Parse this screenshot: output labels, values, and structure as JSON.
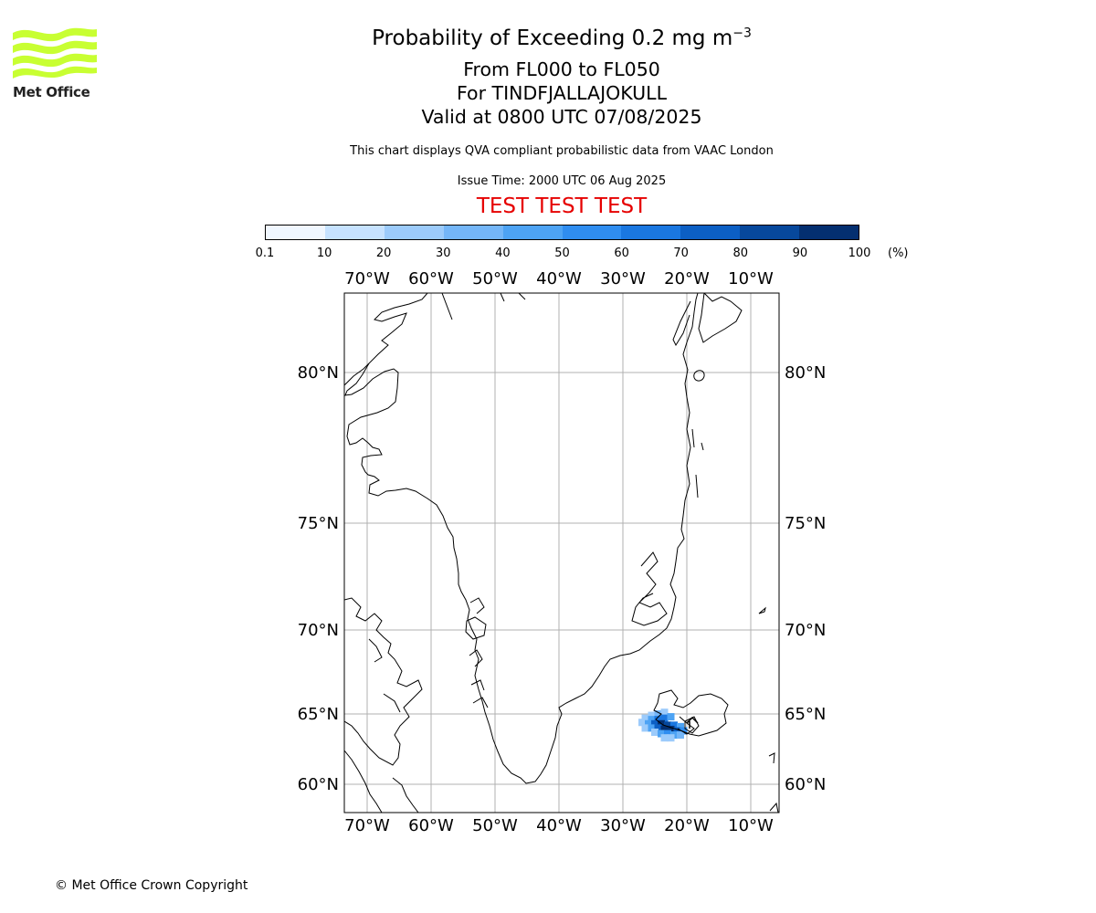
{
  "logo": {
    "text": "Met Office",
    "color": "#c8ff32"
  },
  "title": {
    "main_prefix": "Probability of Exceeding 0.2 mg m",
    "main_exponent": "−3",
    "levels": "From FL000 to FL050",
    "volcano": "For TINDFJALLAJOKULL",
    "valid": "Valid at 0800 UTC 07/08/2025"
  },
  "info": {
    "description": "This chart displays QVA compliant probabilistic data from VAAC London",
    "issue_time": "Issue Time: 2000 UTC 06 Aug 2025",
    "test_banner": "TEST TEST TEST"
  },
  "colorbar": {
    "unit": "(%)",
    "ticks": [
      "0.1",
      "10",
      "20",
      "30",
      "40",
      "50",
      "60",
      "70",
      "80",
      "90",
      "100"
    ],
    "colors": [
      "#f0f7ff",
      "#c6e2ff",
      "#9ccbfb",
      "#74b6f8",
      "#4da3f4",
      "#2f8df0",
      "#1a77e0",
      "#0c5fc4",
      "#07489c",
      "#042f70"
    ]
  },
  "map": {
    "lon_labels": [
      "70°W",
      "60°W",
      "50°W",
      "40°W",
      "30°W",
      "20°W",
      "10°W"
    ],
    "lat_labels": [
      "80°N",
      "75°N",
      "70°N",
      "65°N",
      "60°N"
    ]
  },
  "chart_data": {
    "type": "heatmap",
    "title": "Probability of Exceeding 0.2 mg m−3",
    "value_unit": "%",
    "colorbar_bounds": [
      0.1,
      10,
      20,
      30,
      40,
      50,
      60,
      70,
      80,
      90,
      100
    ],
    "lon_range": [
      -73.5,
      -6.0
    ],
    "lat_range": [
      58.5,
      82.5
    ],
    "lon_ticks": [
      -70,
      -60,
      -50,
      -40,
      -30,
      -20,
      -10
    ],
    "lat_ticks": [
      80,
      75,
      70,
      65,
      60
    ],
    "grid": true,
    "plume_cells": [
      {
        "lon": -25.5,
        "lat": 64.9,
        "pct": 20
      },
      {
        "lon": -24.5,
        "lat": 65.0,
        "pct": 30
      },
      {
        "lon": -23.5,
        "lat": 65.1,
        "pct": 20
      },
      {
        "lon": -26.5,
        "lat": 64.7,
        "pct": 20
      },
      {
        "lon": -25.5,
        "lat": 64.6,
        "pct": 40
      },
      {
        "lon": -24.5,
        "lat": 64.6,
        "pct": 60
      },
      {
        "lon": -23.5,
        "lat": 64.7,
        "pct": 60
      },
      {
        "lon": -22.5,
        "lat": 64.8,
        "pct": 40
      },
      {
        "lon": -27.0,
        "lat": 64.4,
        "pct": 20
      },
      {
        "lon": -26.0,
        "lat": 64.3,
        "pct": 40
      },
      {
        "lon": -25.0,
        "lat": 64.3,
        "pct": 70
      },
      {
        "lon": -24.0,
        "lat": 64.3,
        "pct": 90
      },
      {
        "lon": -23.0,
        "lat": 64.2,
        "pct": 80
      },
      {
        "lon": -22.0,
        "lat": 64.2,
        "pct": 60
      },
      {
        "lon": -21.0,
        "lat": 64.1,
        "pct": 40
      },
      {
        "lon": -26.5,
        "lat": 64.0,
        "pct": 20
      },
      {
        "lon": -25.5,
        "lat": 64.0,
        "pct": 40
      },
      {
        "lon": -24.5,
        "lat": 64.0,
        "pct": 70
      },
      {
        "lon": -23.5,
        "lat": 63.9,
        "pct": 90
      },
      {
        "lon": -22.5,
        "lat": 63.9,
        "pct": 90
      },
      {
        "lon": -21.5,
        "lat": 63.8,
        "pct": 70
      },
      {
        "lon": -20.5,
        "lat": 63.8,
        "pct": 50
      },
      {
        "lon": -25.0,
        "lat": 63.7,
        "pct": 20
      },
      {
        "lon": -24.0,
        "lat": 63.6,
        "pct": 40
      },
      {
        "lon": -23.0,
        "lat": 63.6,
        "pct": 50
      },
      {
        "lon": -22.0,
        "lat": 63.5,
        "pct": 40
      },
      {
        "lon": -21.0,
        "lat": 63.5,
        "pct": 30
      },
      {
        "lon": -23.5,
        "lat": 63.3,
        "pct": 20
      },
      {
        "lon": -22.5,
        "lat": 63.3,
        "pct": 20
      }
    ]
  },
  "copyright": "© Met Office Crown Copyright"
}
